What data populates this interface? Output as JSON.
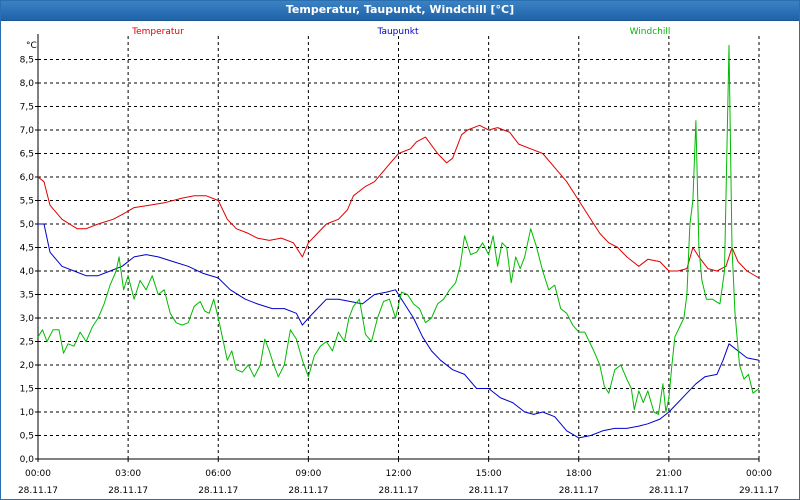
{
  "window": {
    "title": "Temperatur, Taupunkt, Windchill [°C]"
  },
  "chart_data": {
    "type": "line",
    "title": "Temperatur, Taupunkt, Windchill [°C]",
    "ylabel": "°C",
    "xlabel": "",
    "ylim": [
      0.0,
      9.0
    ],
    "y_ticks": [
      "0,0",
      "0,5",
      "1,0",
      "1,5",
      "2,0",
      "2,5",
      "3,0",
      "3,5",
      "4,0",
      "4,5",
      "5,0",
      "5,5",
      "6,0",
      "6,5",
      "7,0",
      "7,5",
      "8,0",
      "8,5"
    ],
    "y_tick_values": [
      0,
      0.5,
      1,
      1.5,
      2,
      2.5,
      3,
      3.5,
      4,
      4.5,
      5,
      5.5,
      6,
      6.5,
      7,
      7.5,
      8,
      8.5
    ],
    "x_ticks": [
      {
        "time": "00:00",
        "date": "28.11.17",
        "hours": 0
      },
      {
        "time": "03:00",
        "date": "28.11.17",
        "hours": 3
      },
      {
        "time": "06:00",
        "date": "28.11.17",
        "hours": 6
      },
      {
        "time": "09:00",
        "date": "28.11.17",
        "hours": 9
      },
      {
        "time": "12:00",
        "date": "28.11.17",
        "hours": 12
      },
      {
        "time": "15:00",
        "date": "28.11.17",
        "hours": 15
      },
      {
        "time": "18:00",
        "date": "28.11.17",
        "hours": 18
      },
      {
        "time": "21:00",
        "date": "28.11.17",
        "hours": 21
      },
      {
        "time": "00:00",
        "date": "29.11.17",
        "hours": 24
      }
    ],
    "xlim_hours": [
      0,
      24
    ],
    "grid": true,
    "legend_position": "top",
    "series": [
      {
        "name": "Temperatur",
        "color": "#e00000",
        "points": [
          [
            0,
            6.0
          ],
          [
            0.2,
            5.9
          ],
          [
            0.4,
            5.4
          ],
          [
            0.8,
            5.1
          ],
          [
            1.3,
            4.9
          ],
          [
            1.6,
            4.9
          ],
          [
            2.0,
            5.0
          ],
          [
            2.5,
            5.1
          ],
          [
            2.8,
            5.2
          ],
          [
            3.2,
            5.35
          ],
          [
            3.7,
            5.4
          ],
          [
            4.2,
            5.45
          ],
          [
            4.8,
            5.55
          ],
          [
            5.2,
            5.6
          ],
          [
            5.6,
            5.6
          ],
          [
            6.0,
            5.5
          ],
          [
            6.3,
            5.1
          ],
          [
            6.6,
            4.9
          ],
          [
            7.0,
            4.8
          ],
          [
            7.3,
            4.7
          ],
          [
            7.7,
            4.65
          ],
          [
            8.1,
            4.7
          ],
          [
            8.5,
            4.6
          ],
          [
            8.8,
            4.3
          ],
          [
            9.0,
            4.6
          ],
          [
            9.3,
            4.8
          ],
          [
            9.6,
            5.0
          ],
          [
            10.0,
            5.1
          ],
          [
            10.3,
            5.3
          ],
          [
            10.5,
            5.6
          ],
          [
            10.9,
            5.8
          ],
          [
            11.2,
            5.9
          ],
          [
            11.6,
            6.2
          ],
          [
            12.0,
            6.5
          ],
          [
            12.4,
            6.6
          ],
          [
            12.6,
            6.75
          ],
          [
            12.9,
            6.85
          ],
          [
            13.3,
            6.5
          ],
          [
            13.6,
            6.3
          ],
          [
            13.8,
            6.4
          ],
          [
            14.1,
            6.9
          ],
          [
            14.3,
            7.0
          ],
          [
            14.7,
            7.1
          ],
          [
            15.0,
            7.0
          ],
          [
            15.3,
            7.05
          ],
          [
            15.7,
            6.95
          ],
          [
            16.0,
            6.7
          ],
          [
            16.4,
            6.6
          ],
          [
            16.8,
            6.5
          ],
          [
            17.2,
            6.2
          ],
          [
            17.6,
            5.9
          ],
          [
            18.0,
            5.5
          ],
          [
            18.3,
            5.2
          ],
          [
            18.7,
            4.8
          ],
          [
            19.0,
            4.6
          ],
          [
            19.3,
            4.5
          ],
          [
            19.6,
            4.3
          ],
          [
            20.0,
            4.1
          ],
          [
            20.3,
            4.25
          ],
          [
            20.7,
            4.2
          ],
          [
            21.0,
            4.0
          ],
          [
            21.3,
            4.0
          ],
          [
            21.6,
            4.05
          ],
          [
            21.8,
            4.5
          ],
          [
            22.0,
            4.3
          ],
          [
            22.3,
            4.05
          ],
          [
            22.6,
            4.0
          ],
          [
            22.9,
            4.1
          ],
          [
            23.1,
            4.5
          ],
          [
            23.3,
            4.2
          ],
          [
            23.6,
            4.0
          ],
          [
            24.0,
            3.85
          ]
        ]
      },
      {
        "name": "Taupunkt",
        "color": "#0000cc",
        "points": [
          [
            0,
            5.0
          ],
          [
            0.2,
            5.0
          ],
          [
            0.4,
            4.4
          ],
          [
            0.8,
            4.1
          ],
          [
            1.2,
            4.0
          ],
          [
            1.6,
            3.9
          ],
          [
            2.0,
            3.9
          ],
          [
            2.4,
            4.0
          ],
          [
            2.8,
            4.1
          ],
          [
            3.2,
            4.3
          ],
          [
            3.6,
            4.35
          ],
          [
            4.0,
            4.3
          ],
          [
            4.5,
            4.2
          ],
          [
            5.0,
            4.1
          ],
          [
            5.5,
            3.95
          ],
          [
            6.0,
            3.85
          ],
          [
            6.4,
            3.6
          ],
          [
            6.9,
            3.4
          ],
          [
            7.3,
            3.3
          ],
          [
            7.8,
            3.2
          ],
          [
            8.2,
            3.2
          ],
          [
            8.6,
            3.1
          ],
          [
            8.8,
            2.85
          ],
          [
            9.0,
            3.0
          ],
          [
            9.3,
            3.2
          ],
          [
            9.6,
            3.4
          ],
          [
            10.0,
            3.4
          ],
          [
            10.4,
            3.35
          ],
          [
            10.8,
            3.3
          ],
          [
            11.2,
            3.5
          ],
          [
            11.6,
            3.55
          ],
          [
            11.9,
            3.6
          ],
          [
            12.2,
            3.3
          ],
          [
            12.5,
            3.0
          ],
          [
            12.8,
            2.6
          ],
          [
            13.1,
            2.3
          ],
          [
            13.4,
            2.1
          ],
          [
            13.8,
            1.9
          ],
          [
            14.2,
            1.8
          ],
          [
            14.6,
            1.5
          ],
          [
            15.0,
            1.5
          ],
          [
            15.4,
            1.3
          ],
          [
            15.8,
            1.2
          ],
          [
            16.2,
            1.0
          ],
          [
            16.5,
            0.95
          ],
          [
            16.8,
            1.0
          ],
          [
            17.2,
            0.9
          ],
          [
            17.6,
            0.6
          ],
          [
            18.0,
            0.45
          ],
          [
            18.4,
            0.5
          ],
          [
            18.8,
            0.6
          ],
          [
            19.2,
            0.65
          ],
          [
            19.6,
            0.65
          ],
          [
            20.0,
            0.7
          ],
          [
            20.3,
            0.75
          ],
          [
            20.7,
            0.85
          ],
          [
            21.0,
            1.0
          ],
          [
            21.3,
            1.2
          ],
          [
            21.6,
            1.4
          ],
          [
            21.9,
            1.6
          ],
          [
            22.2,
            1.75
          ],
          [
            22.6,
            1.8
          ],
          [
            22.8,
            2.1
          ],
          [
            23.0,
            2.45
          ],
          [
            23.3,
            2.3
          ],
          [
            23.6,
            2.15
          ],
          [
            24.0,
            2.1
          ]
        ]
      },
      {
        "name": "Windchill",
        "color": "#00bb00",
        "points": [
          [
            0,
            2.6
          ],
          [
            0.15,
            2.75
          ],
          [
            0.3,
            2.5
          ],
          [
            0.5,
            2.75
          ],
          [
            0.7,
            2.75
          ],
          [
            0.85,
            2.25
          ],
          [
            1.0,
            2.45
          ],
          [
            1.2,
            2.4
          ],
          [
            1.4,
            2.7
          ],
          [
            1.6,
            2.5
          ],
          [
            1.8,
            2.8
          ],
          [
            2.0,
            3.0
          ],
          [
            2.2,
            3.3
          ],
          [
            2.4,
            3.7
          ],
          [
            2.6,
            4.0
          ],
          [
            2.7,
            4.3
          ],
          [
            2.85,
            3.6
          ],
          [
            3.0,
            3.9
          ],
          [
            3.2,
            3.4
          ],
          [
            3.4,
            3.8
          ],
          [
            3.6,
            3.6
          ],
          [
            3.8,
            3.9
          ],
          [
            4.0,
            3.5
          ],
          [
            4.2,
            3.6
          ],
          [
            4.4,
            3.1
          ],
          [
            4.6,
            2.9
          ],
          [
            4.8,
            2.85
          ],
          [
            5.0,
            2.9
          ],
          [
            5.2,
            3.25
          ],
          [
            5.4,
            3.35
          ],
          [
            5.55,
            3.15
          ],
          [
            5.7,
            3.1
          ],
          [
            5.85,
            3.4
          ],
          [
            6.0,
            3.0
          ],
          [
            6.15,
            2.55
          ],
          [
            6.3,
            2.1
          ],
          [
            6.45,
            2.3
          ],
          [
            6.6,
            1.9
          ],
          [
            6.8,
            1.85
          ],
          [
            7.0,
            2.0
          ],
          [
            7.2,
            1.75
          ],
          [
            7.4,
            2.0
          ],
          [
            7.55,
            2.55
          ],
          [
            7.7,
            2.3
          ],
          [
            7.85,
            2.0
          ],
          [
            8.0,
            1.75
          ],
          [
            8.2,
            2.0
          ],
          [
            8.4,
            2.75
          ],
          [
            8.6,
            2.55
          ],
          [
            8.8,
            2.1
          ],
          [
            9.0,
            1.75
          ],
          [
            9.2,
            2.2
          ],
          [
            9.4,
            2.4
          ],
          [
            9.6,
            2.5
          ],
          [
            9.8,
            2.3
          ],
          [
            10.0,
            2.7
          ],
          [
            10.2,
            2.5
          ],
          [
            10.35,
            3.0
          ],
          [
            10.5,
            3.25
          ],
          [
            10.7,
            3.4
          ],
          [
            10.9,
            2.65
          ],
          [
            11.1,
            2.5
          ],
          [
            11.3,
            3.0
          ],
          [
            11.5,
            3.35
          ],
          [
            11.7,
            3.4
          ],
          [
            11.9,
            3.0
          ],
          [
            12.1,
            3.55
          ],
          [
            12.3,
            3.5
          ],
          [
            12.5,
            3.3
          ],
          [
            12.7,
            3.2
          ],
          [
            12.9,
            2.9
          ],
          [
            13.1,
            3.0
          ],
          [
            13.3,
            3.3
          ],
          [
            13.5,
            3.4
          ],
          [
            13.7,
            3.6
          ],
          [
            13.9,
            3.75
          ],
          [
            14.05,
            4.1
          ],
          [
            14.2,
            4.75
          ],
          [
            14.4,
            4.35
          ],
          [
            14.6,
            4.4
          ],
          [
            14.8,
            4.6
          ],
          [
            15.0,
            4.35
          ],
          [
            15.15,
            4.75
          ],
          [
            15.3,
            4.1
          ],
          [
            15.45,
            4.6
          ],
          [
            15.6,
            4.5
          ],
          [
            15.75,
            3.75
          ],
          [
            15.9,
            4.3
          ],
          [
            16.05,
            4.05
          ],
          [
            16.2,
            4.3
          ],
          [
            16.4,
            4.9
          ],
          [
            16.6,
            4.5
          ],
          [
            16.8,
            4.0
          ],
          [
            17.0,
            3.6
          ],
          [
            17.2,
            3.7
          ],
          [
            17.4,
            3.2
          ],
          [
            17.6,
            3.1
          ],
          [
            17.8,
            2.85
          ],
          [
            18.0,
            2.7
          ],
          [
            18.2,
            2.7
          ],
          [
            18.35,
            2.5
          ],
          [
            18.5,
            2.3
          ],
          [
            18.7,
            2.0
          ],
          [
            18.85,
            1.55
          ],
          [
            19.0,
            1.4
          ],
          [
            19.2,
            1.9
          ],
          [
            19.4,
            2.0
          ],
          [
            19.6,
            1.7
          ],
          [
            19.75,
            1.5
          ],
          [
            19.85,
            1.05
          ],
          [
            20.0,
            1.45
          ],
          [
            20.15,
            1.2
          ],
          [
            20.3,
            1.45
          ],
          [
            20.5,
            1.0
          ],
          [
            20.65,
            0.95
          ],
          [
            20.8,
            1.6
          ],
          [
            20.9,
            1.0
          ],
          [
            21.0,
            1.3
          ],
          [
            21.1,
            2.0
          ],
          [
            21.2,
            2.6
          ],
          [
            21.35,
            2.8
          ],
          [
            21.5,
            3.0
          ],
          [
            21.6,
            3.5
          ],
          [
            21.7,
            5.0
          ],
          [
            21.8,
            5.5
          ],
          [
            21.9,
            7.2
          ],
          [
            22.0,
            4.5
          ],
          [
            22.1,
            3.8
          ],
          [
            22.25,
            3.4
          ],
          [
            22.45,
            3.4
          ],
          [
            22.7,
            3.3
          ],
          [
            22.85,
            4.0
          ],
          [
            23.0,
            8.8
          ],
          [
            23.1,
            4.5
          ],
          [
            23.2,
            3.1
          ],
          [
            23.35,
            2.0
          ],
          [
            23.5,
            1.7
          ],
          [
            23.65,
            1.8
          ],
          [
            23.8,
            1.4
          ],
          [
            24.0,
            1.5
          ]
        ]
      }
    ]
  }
}
